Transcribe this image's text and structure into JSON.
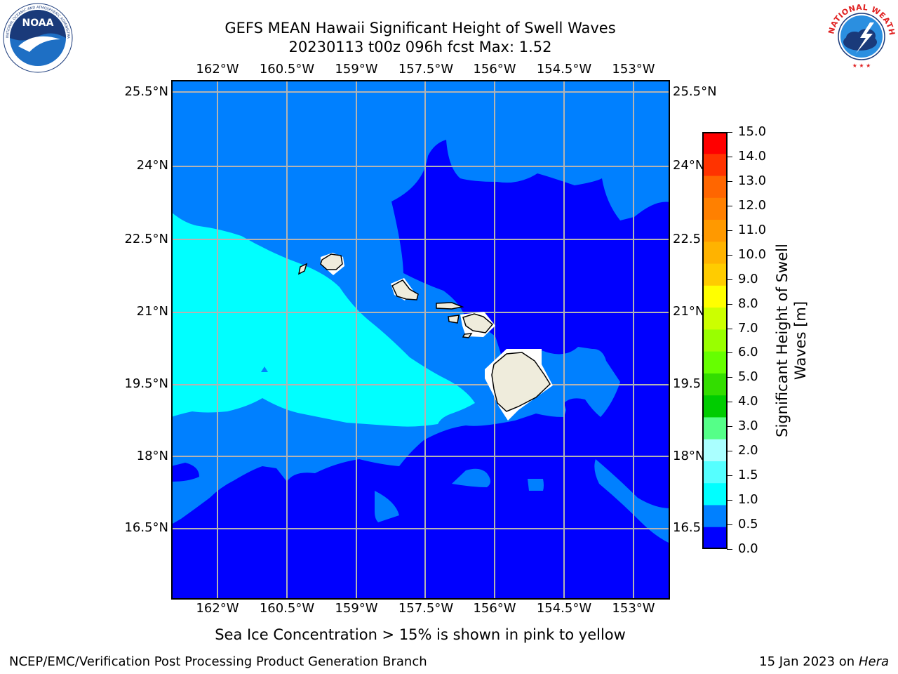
{
  "header": {
    "title_line1": "GEFS MEAN Hawaii Significant Height of Swell Waves",
    "title_line2": "20230113 t00z 096h fcst   Max: 1.52"
  },
  "logos": {
    "left": {
      "name": "NOAA",
      "ring_text": "NATIONAL OCEANIC AND ATMOSPHERIC ADMINISTRATION · U.S. DEPARTMENT OF COMMERCE"
    },
    "right": {
      "name": "NATIONAL WEATHER SERVICE"
    }
  },
  "map": {
    "lon_ticks": [
      "162°W",
      "160.5°W",
      "159°W",
      "157.5°W",
      "156°W",
      "154.5°W",
      "153°W"
    ],
    "lat_ticks": [
      "25.5°N",
      "24°N",
      "22.5°N",
      "21°N",
      "19.5°N",
      "18°N",
      "16.5°N"
    ],
    "lon_values": [
      -162,
      -160.5,
      -159,
      -157.5,
      -156,
      -154.5,
      -153
    ],
    "lat_values": [
      25.5,
      24,
      22.5,
      21,
      19.5,
      18,
      16.5
    ],
    "extent": {
      "lon_min": -163,
      "lon_max": -152.3,
      "lat_min": 15,
      "lat_max": 25.7
    },
    "gridlines": true,
    "colors": {
      "band_0_0.5": "#0000ff",
      "band_0.5_1.0": "#0080ff",
      "band_1.0_1.5": "#00ffff",
      "land": "#efecdc",
      "grid": "#b3b3b3"
    }
  },
  "colorbar": {
    "label": "Significant Height of Swell Waves [m]",
    "ticks": [
      "15.0",
      "14.0",
      "13.0",
      "12.0",
      "11.0",
      "10.0",
      "9.0",
      "8.0",
      "7.0",
      "6.0",
      "5.0",
      "4.0",
      "3.0",
      "2.0",
      "1.5",
      "1.0",
      "0.5",
      "0.0"
    ],
    "colors": [
      "#ff0000",
      "#ff3300",
      "#ff6600",
      "#ff8000",
      "#ff9900",
      "#ffb300",
      "#ffcc00",
      "#ffff00",
      "#ccff00",
      "#99ff00",
      "#66ff00",
      "#33dd00",
      "#00cc00",
      "#55ff88",
      "#aaffff",
      "#55ffff",
      "#00ffff",
      "#0080ff",
      "#0000ff"
    ]
  },
  "footnote": "Sea Ice Concentration > 15% is shown in pink to yellow",
  "credits": {
    "left": "NCEP/EMC/Verification Post Processing Product Generation Branch",
    "right_prefix": "15 Jan 2023 on ",
    "right_machine": "Hera"
  }
}
